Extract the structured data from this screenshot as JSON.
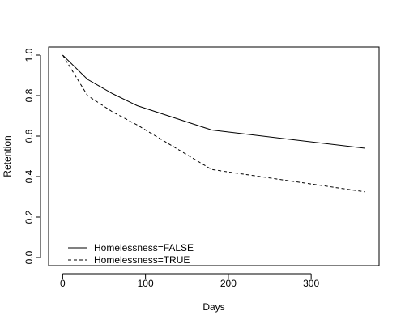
{
  "chart_data": {
    "type": "line",
    "xlabel": "Days",
    "ylabel": "Retention",
    "xlim": [
      -17,
      382
    ],
    "ylim": [
      -0.04,
      1.04
    ],
    "x_ticks": [
      0,
      100,
      200,
      300
    ],
    "y_ticks": [
      0.0,
      0.2,
      0.4,
      0.6,
      0.8,
      1.0
    ],
    "x_tick_labels": [
      "0",
      "100",
      "200",
      "300"
    ],
    "y_tick_labels": [
      "0.0",
      "0.2",
      "0.4",
      "0.6",
      "0.8",
      "1.0"
    ],
    "grid": false,
    "legend_position": "bottom-left",
    "series": [
      {
        "name": "Homelessness=FALSE",
        "line_style": "solid",
        "color": "#000000",
        "x": [
          0,
          30,
          60,
          90,
          180,
          365
        ],
        "y": [
          1.0,
          0.88,
          0.81,
          0.75,
          0.63,
          0.54
        ]
      },
      {
        "name": "Homelessness=TRUE",
        "line_style": "dashed",
        "color": "#000000",
        "x": [
          0,
          30,
          60,
          90,
          180,
          365
        ],
        "y": [
          1.0,
          0.8,
          0.72,
          0.655,
          0.435,
          0.325
        ]
      }
    ]
  }
}
